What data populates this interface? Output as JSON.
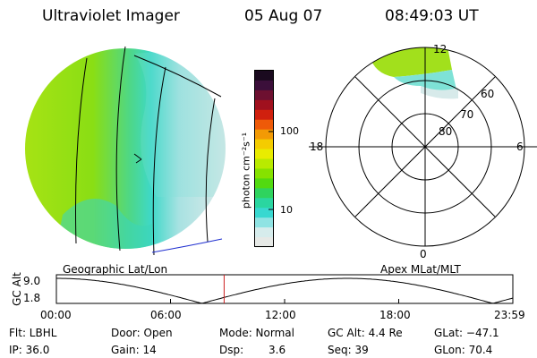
{
  "header": {
    "title": "Ultraviolet Imager",
    "date": "05 Aug 07",
    "time": "08:49:03 UT"
  },
  "colorbar": {
    "unit_label": "photon cm⁻²s⁻¹",
    "ticks": [
      "100",
      "10"
    ],
    "colors": [
      "#1a0a1f",
      "#3b0f3a",
      "#6d1030",
      "#a0101e",
      "#d0200e",
      "#ee5a08",
      "#f29a05",
      "#f4cc00",
      "#e9ec00",
      "#b9ea00",
      "#86e200",
      "#52da10",
      "#2fd35e",
      "#2ad6a0",
      "#38d8d0",
      "#8fe3e3",
      "#d6ecec",
      "#e6e9e6"
    ]
  },
  "polar_plot": {
    "mlt_labels": [
      "12",
      "18",
      "6",
      "0"
    ],
    "lat_labels": [
      "60",
      "70",
      "80"
    ]
  },
  "map": {
    "caption_left": "Geographic Lat/Lon",
    "caption_right": "Apex MLat/MLT"
  },
  "altitude_plot": {
    "ylabel": "GC Alt",
    "y_ticks": [
      "9.0",
      "1.8"
    ],
    "x_ticks": [
      "00:00",
      "06:00",
      "12:00",
      "18:00",
      "23:59"
    ],
    "current_time_marker_hour": 8.82
  },
  "status": {
    "filter": "Flt: LBHL",
    "ip": "IP: 36.0",
    "door": "Door: Open",
    "gain": "Gain: 14",
    "mode": "Mode: Normal",
    "dsp_label": "Dsp:",
    "dsp_value": "3.6",
    "gc_alt": "GC Alt: 4.4 Re",
    "seq": "Seq: 39",
    "glat": "GLat: −47.1",
    "glon": "GLon: 70.4"
  }
}
